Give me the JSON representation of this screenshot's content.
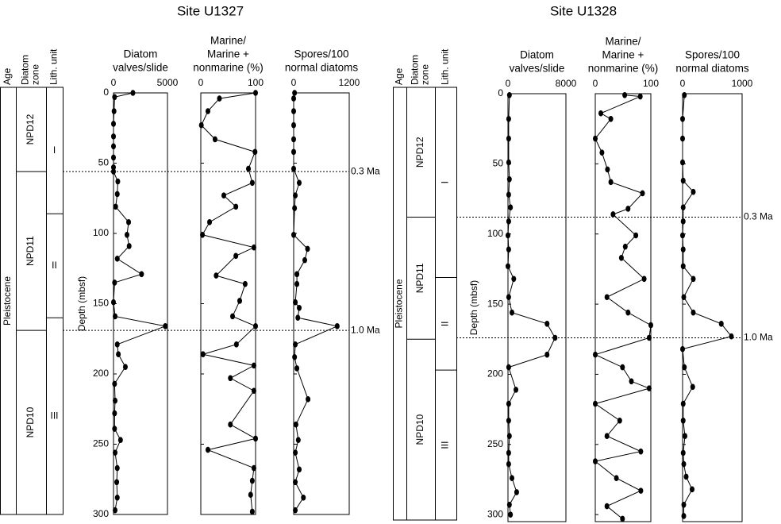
{
  "chart_data": [
    {
      "type": "line",
      "title": "Site U1327",
      "ylabel": "Depth (mbsf)",
      "ylim": [
        0,
        300
      ],
      "yticks": [
        0,
        50,
        100,
        150,
        200,
        250,
        300
      ],
      "column_headers": [
        [
          "Age"
        ],
        [
          "Diatom",
          "zone"
        ],
        [
          "Lith. unit"
        ]
      ],
      "age": "Pleistocene",
      "zones": [
        "NPD12",
        "NPD11",
        "NPD10"
      ],
      "zone_boundaries": [
        56,
        169
      ],
      "units": [
        "I",
        "II",
        "III"
      ],
      "unit_boundaries": [
        86,
        160
      ],
      "datums": [
        {
          "label": "0.3 Ma",
          "depth": 56
        },
        {
          "label": "1.0 Ma",
          "depth": 169
        }
      ],
      "panels": [
        {
          "title": [
            "Diatom",
            "valves/slide"
          ],
          "xlim": [
            0,
            5000
          ],
          "xticks": [
            0,
            5000
          ],
          "y": [
            0,
            3,
            13,
            22,
            31,
            38,
            46,
            53,
            56,
            63,
            72,
            81,
            92,
            101,
            109,
            118,
            129,
            135,
            149,
            159,
            166,
            179,
            186,
            195,
            207,
            219,
            228,
            239,
            247,
            256,
            267,
            277,
            288,
            297
          ],
          "x": [
            1800,
            100,
            50,
            0,
            0,
            0,
            0,
            0,
            0,
            400,
            350,
            200,
            1400,
            1250,
            1450,
            350,
            2600,
            100,
            0,
            150,
            4800,
            350,
            450,
            1100,
            100,
            150,
            100,
            100,
            650,
            150,
            350,
            300,
            350,
            150
          ]
        },
        {
          "title": [
            "Marine/",
            "Marine +",
            "nonmarine (%)"
          ],
          "xlim": [
            0,
            100
          ],
          "xticks": [
            0,
            100
          ],
          "y": [
            0,
            4,
            13,
            23,
            33,
            42,
            54,
            64,
            73,
            81,
            92,
            101,
            110,
            116,
            130,
            136,
            148,
            159,
            166,
            179,
            186,
            194,
            203,
            212,
            236,
            246,
            254,
            267,
            276,
            286,
            298
          ],
          "x": [
            100,
            34,
            13,
            1,
            26,
            99,
            87,
            94,
            42,
            64,
            16,
            3,
            97,
            64,
            28,
            81,
            71,
            58,
            100,
            65,
            4,
            97,
            54,
            97,
            54,
            100,
            13,
            97,
            94,
            91,
            94
          ]
        },
        {
          "title": [
            "Spores/100",
            "normal diatoms"
          ],
          "xlim": [
            0,
            1200
          ],
          "xticks": [
            0,
            1200
          ],
          "y": [
            0,
            4,
            13,
            23,
            33,
            42,
            54,
            64,
            73,
            82,
            101,
            111,
            119,
            129,
            136,
            149,
            153,
            160,
            166,
            179,
            188,
            196,
            218,
            236,
            247,
            256,
            268,
            277,
            288,
            297
          ],
          "x": [
            20,
            0,
            0,
            0,
            0,
            0,
            0,
            120,
            35,
            20,
            0,
            300,
            240,
            70,
            70,
            35,
            120,
            90,
            940,
            35,
            20,
            70,
            310,
            50,
            100,
            35,
            120,
            35,
            210,
            35
          ]
        }
      ]
    },
    {
      "type": "line",
      "title": "Site U1328",
      "ylabel": "Depth (mbsf)",
      "ylim": [
        0,
        305
      ],
      "yticks": [
        0,
        50,
        100,
        150,
        200,
        250,
        300
      ],
      "column_headers": [
        [
          "Age"
        ],
        [
          "Diatom",
          "zone"
        ],
        [
          "Lith. unit"
        ]
      ],
      "age": "Pleistocene",
      "zones": [
        "NPD12",
        "NPD11",
        "NPD10"
      ],
      "zone_boundaries": [
        88,
        175
      ],
      "units": [
        "I",
        "II",
        "III"
      ],
      "unit_boundaries": [
        131,
        197
      ],
      "datums": [
        {
          "label": "0.3 Ma",
          "depth": 88
        },
        {
          "label": "1.0 Ma",
          "depth": 174
        }
      ],
      "panels": [
        {
          "title": [
            "Diatom",
            "valves/slide"
          ],
          "xlim": [
            0,
            8000
          ],
          "xticks": [
            0,
            8000
          ],
          "y": [
            1,
            18,
            32,
            49,
            61,
            72,
            81,
            91,
            101,
            111,
            123,
            132,
            145,
            156,
            164,
            174,
            186,
            195,
            211,
            221,
            233,
            244,
            256,
            264,
            274,
            284,
            293,
            300
          ],
          "x": [
            200,
            100,
            100,
            100,
            200,
            100,
            350,
            100,
            0,
            100,
            0,
            800,
            100,
            550,
            5400,
            6500,
            5400,
            100,
            1100,
            100,
            100,
            200,
            100,
            100,
            550,
            1200,
            200,
            350
          ]
        },
        {
          "title": [
            "Marine/",
            "Marine +",
            "nonmarine (%)"
          ],
          "xlim": [
            0,
            100
          ],
          "xticks": [
            0,
            100
          ],
          "y": [
            1,
            2,
            14,
            18,
            32,
            42,
            54,
            63,
            71,
            82,
            86,
            101,
            109,
            117,
            132,
            145,
            156,
            165,
            174,
            186,
            195,
            205,
            210,
            221,
            233,
            244,
            255,
            262,
            274,
            283,
            294,
            303
          ],
          "x": [
            53,
            81,
            10,
            28,
            0,
            12,
            22,
            28,
            85,
            59,
            32,
            73,
            54,
            47,
            88,
            21,
            59,
            100,
            97,
            0,
            49,
            65,
            97,
            0,
            44,
            21,
            82,
            0,
            38,
            82,
            21,
            49
          ]
        },
        {
          "title": [
            "Spores/100",
            "normal diatoms"
          ],
          "xlim": [
            0,
            1000
          ],
          "xticks": [
            0,
            1000
          ],
          "y": [
            1,
            18,
            32,
            49,
            62,
            70,
            81,
            91,
            101,
            111,
            123,
            132,
            145,
            156,
            164,
            173,
            182,
            195,
            209,
            221,
            233,
            244,
            256,
            264,
            273,
            282,
            293,
            301
          ],
          "x": [
            30,
            0,
            0,
            0,
            10,
            180,
            10,
            10,
            0,
            10,
            10,
            180,
            20,
            180,
            650,
            820,
            0,
            30,
            170,
            10,
            10,
            40,
            10,
            20,
            60,
            160,
            20,
            20
          ]
        }
      ]
    }
  ]
}
